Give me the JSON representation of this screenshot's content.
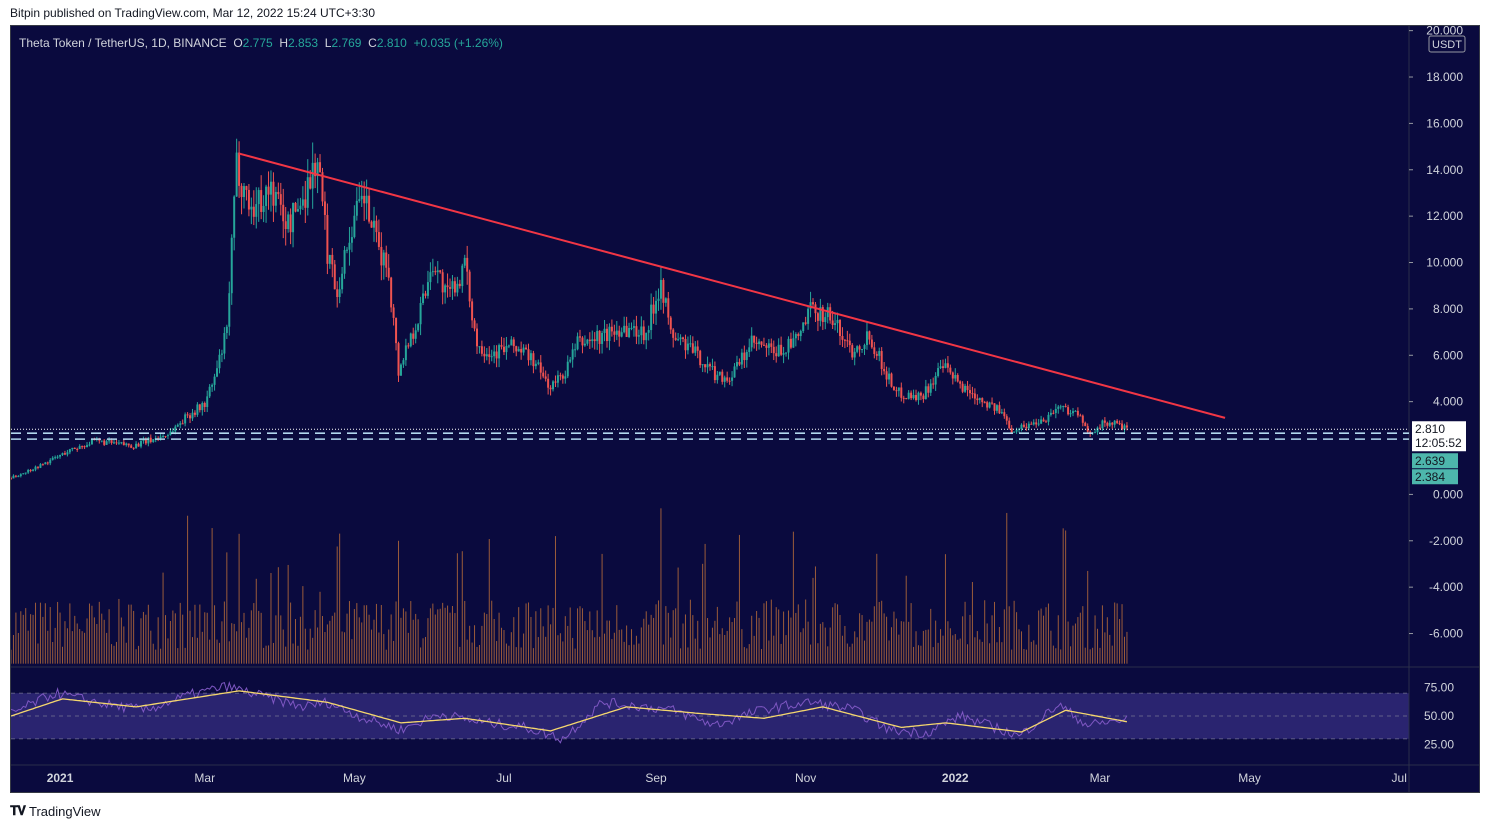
{
  "header": {
    "publisher": "Bitpin published on TradingView.com, Mar 12, 2022 15:24 UTC+3:30"
  },
  "legend": {
    "symbol": "Theta Token / TetherUS, 1D, BINANCE",
    "open_label": "O",
    "open": "2.775",
    "high_label": "H",
    "high": "2.853",
    "low_label": "L",
    "low": "2.769",
    "close_label": "C",
    "close": "2.810",
    "change": "+0.035 (+1.26%)"
  },
  "footer": {
    "brand": "TradingView",
    "logo": "tradingview-logo-icon"
  },
  "colors": {
    "background": "#0a0a3e",
    "up": "#26a69a",
    "down": "#ef5350",
    "trendline": "#f23645",
    "volume": "#b46a3a",
    "rsi": "#7e57c2",
    "rsi_ma": "#f5d76e",
    "rsi_band": "#2a2470",
    "support": "#b2d8ee",
    "price_badge_bg": "#ffffff",
    "level_badge_bg": "#4db6ac"
  },
  "chart_data": {
    "type": "candlestick",
    "currency_label": "USDT",
    "price_axis_ticks": [
      "20.000",
      "18.000",
      "16.000",
      "14.000",
      "12.000",
      "10.000",
      "8.000",
      "6.000",
      "4.000",
      "0.000",
      "-2.000",
      "-4.000",
      "-6.000"
    ],
    "price_axis_values": [
      20,
      18,
      16,
      14,
      12,
      10,
      8,
      6,
      4,
      0,
      -2,
      -4,
      -6
    ],
    "rsi_axis_ticks": [
      "75.00",
      "50.00",
      "25.00"
    ],
    "rsi_axis_values": [
      75,
      50,
      25
    ],
    "time_axis_labels": [
      "2021",
      "Mar",
      "May",
      "Jul",
      "Sep",
      "Nov",
      "2022",
      "Mar",
      "May",
      "Jul"
    ],
    "time_axis_dates": [
      "2021-01-01",
      "2021-03-01",
      "2021-05-01",
      "2021-07-01",
      "2021-09-01",
      "2021-11-01",
      "2022-01-01",
      "2022-03-01",
      "2022-05-01",
      "2022-07-01"
    ],
    "time_range": [
      "2020-12-12",
      "2022-07-05"
    ],
    "price_range": [
      -7.4,
      20.2
    ],
    "rsi_range": [
      8,
      92
    ],
    "current_price": {
      "value": 2.81,
      "label": "2.810",
      "countdown": "12:05:52"
    },
    "support_levels": [
      {
        "value": 2.639,
        "label": "2.639"
      },
      {
        "value": 2.384,
        "label": "2.384"
      }
    ],
    "trendline": {
      "start": {
        "date": "2021-03-15",
        "price": 14.7
      },
      "end": {
        "date": "2022-04-21",
        "price": 3.3
      }
    },
    "price_path": [
      [
        "2020-12-12",
        0.7
      ],
      [
        "2020-12-25",
        1.3
      ],
      [
        "2021-01-05",
        1.9
      ],
      [
        "2021-01-15",
        2.3
      ],
      [
        "2021-01-31",
        2.1
      ],
      [
        "2021-02-14",
        2.6
      ],
      [
        "2021-02-22",
        3.4
      ],
      [
        "2021-03-01",
        3.9
      ],
      [
        "2021-03-05",
        5.0
      ],
      [
        "2021-03-10",
        7.0
      ],
      [
        "2021-03-14",
        14.2
      ],
      [
        "2021-03-20",
        12.3
      ],
      [
        "2021-03-28",
        13.2
      ],
      [
        "2021-04-04",
        11.6
      ],
      [
        "2021-04-10",
        12.8
      ],
      [
        "2021-04-16",
        14.5
      ],
      [
        "2021-04-20",
        10.5
      ],
      [
        "2021-04-24",
        8.8
      ],
      [
        "2021-04-30",
        11.6
      ],
      [
        "2021-05-05",
        12.8
      ],
      [
        "2021-05-10",
        10.8
      ],
      [
        "2021-05-15",
        9.6
      ],
      [
        "2021-05-19",
        5.3
      ],
      [
        "2021-05-22",
        6.3
      ],
      [
        "2021-05-27",
        7.6
      ],
      [
        "2021-06-02",
        10.1
      ],
      [
        "2021-06-08",
        8.5
      ],
      [
        "2021-06-15",
        9.8
      ],
      [
        "2021-06-20",
        6.5
      ],
      [
        "2021-06-26",
        6.1
      ],
      [
        "2021-07-05",
        6.4
      ],
      [
        "2021-07-12",
        5.9
      ],
      [
        "2021-07-20",
        4.6
      ],
      [
        "2021-07-26",
        5.3
      ],
      [
        "2021-07-31",
        6.5
      ],
      [
        "2021-08-10",
        6.8
      ],
      [
        "2021-08-18",
        7.2
      ],
      [
        "2021-08-28",
        7.0
      ],
      [
        "2021-09-03",
        9.3
      ],
      [
        "2021-09-07",
        6.9
      ],
      [
        "2021-09-15",
        6.3
      ],
      [
        "2021-09-25",
        5.2
      ],
      [
        "2021-10-01",
        5.0
      ],
      [
        "2021-10-10",
        6.5
      ],
      [
        "2021-10-20",
        6.1
      ],
      [
        "2021-10-28",
        6.6
      ],
      [
        "2021-11-03",
        7.9
      ],
      [
        "2021-11-10",
        7.8
      ],
      [
        "2021-11-20",
        6.2
      ],
      [
        "2021-11-27",
        6.9
      ],
      [
        "2021-12-03",
        5.4
      ],
      [
        "2021-12-08",
        4.4
      ],
      [
        "2021-12-18",
        4.2
      ],
      [
        "2021-12-27",
        5.5
      ],
      [
        "2022-01-03",
        4.7
      ],
      [
        "2022-01-12",
        4.1
      ],
      [
        "2022-01-20",
        3.5
      ],
      [
        "2022-01-24",
        2.8
      ],
      [
        "2022-01-31",
        3.0
      ],
      [
        "2022-02-07",
        3.3
      ],
      [
        "2022-02-12",
        3.8
      ],
      [
        "2022-02-20",
        3.5
      ],
      [
        "2022-02-24",
        2.6
      ],
      [
        "2022-03-01",
        3.0
      ],
      [
        "2022-03-06",
        3.1
      ],
      [
        "2022-03-12",
        2.81
      ]
    ],
    "volume_peaks": [
      [
        "2021-03-10",
        -2.5
      ],
      [
        "2021-03-15",
        -1.7
      ],
      [
        "2021-04-17",
        -4.2
      ],
      [
        "2021-05-19",
        -2.0
      ],
      [
        "2021-09-03",
        -0.6
      ],
      [
        "2021-11-04",
        -3.6
      ],
      [
        "2022-01-22",
        -0.8
      ],
      [
        "2022-02-24",
        -3.3
      ]
    ],
    "volume_baseline": -7.3,
    "rsi_path": [
      [
        "2020-12-12",
        52
      ],
      [
        "2020-12-30",
        70
      ],
      [
        "2021-01-20",
        60
      ],
      [
        "2021-02-05",
        55
      ],
      [
        "2021-02-22",
        68
      ],
      [
        "2021-03-10",
        76
      ],
      [
        "2021-03-20",
        70
      ],
      [
        "2021-04-10",
        58
      ],
      [
        "2021-04-20",
        62
      ],
      [
        "2021-05-05",
        48
      ],
      [
        "2021-05-20",
        38
      ],
      [
        "2021-06-05",
        52
      ],
      [
        "2021-06-20",
        45
      ],
      [
        "2021-07-10",
        40
      ],
      [
        "2021-07-25",
        30
      ],
      [
        "2021-08-10",
        62
      ],
      [
        "2021-08-28",
        58
      ],
      [
        "2021-09-08",
        55
      ],
      [
        "2021-09-25",
        42
      ],
      [
        "2021-10-15",
        56
      ],
      [
        "2021-11-03",
        62
      ],
      [
        "2021-11-20",
        56
      ],
      [
        "2021-12-05",
        38
      ],
      [
        "2021-12-20",
        35
      ],
      [
        "2022-01-03",
        50
      ],
      [
        "2022-01-20",
        38
      ],
      [
        "2022-01-27",
        32
      ],
      [
        "2022-02-12",
        60
      ],
      [
        "2022-02-24",
        42
      ],
      [
        "2022-03-12",
        47
      ]
    ],
    "rsi_ma_path": [
      [
        "2020-12-12",
        50
      ],
      [
        "2021-01-02",
        65
      ],
      [
        "2021-02-01",
        58
      ],
      [
        "2021-03-15",
        72
      ],
      [
        "2021-04-20",
        62
      ],
      [
        "2021-05-20",
        44
      ],
      [
        "2021-06-15",
        48
      ],
      [
        "2021-07-20",
        37
      ],
      [
        "2021-08-20",
        58
      ],
      [
        "2021-09-20",
        52
      ],
      [
        "2021-10-15",
        48
      ],
      [
        "2021-11-08",
        58
      ],
      [
        "2021-12-10",
        40
      ],
      [
        "2021-12-28",
        44
      ],
      [
        "2022-01-28",
        36
      ],
      [
        "2022-02-15",
        55
      ],
      [
        "2022-03-12",
        45
      ]
    ]
  }
}
